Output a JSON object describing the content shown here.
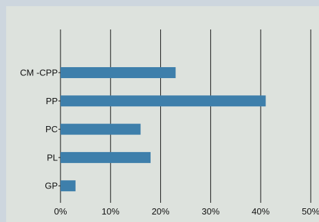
{
  "chart_data": {
    "type": "bar",
    "orientation": "horizontal",
    "categories": [
      "CM -CPP",
      "PP",
      "PC",
      "PL",
      "GP"
    ],
    "values": [
      23,
      41,
      16,
      18,
      3
    ],
    "x_tick_labels": [
      "0%",
      "10%",
      "20%",
      "30%",
      "40%",
      "50%"
    ],
    "xlim": [
      0,
      50
    ],
    "grid": "vertical",
    "bar_color": "#3e7fab",
    "background_color": "#dde2dd",
    "outer_color": "#cdd6de",
    "title": "",
    "xlabel": "",
    "ylabel": ""
  }
}
